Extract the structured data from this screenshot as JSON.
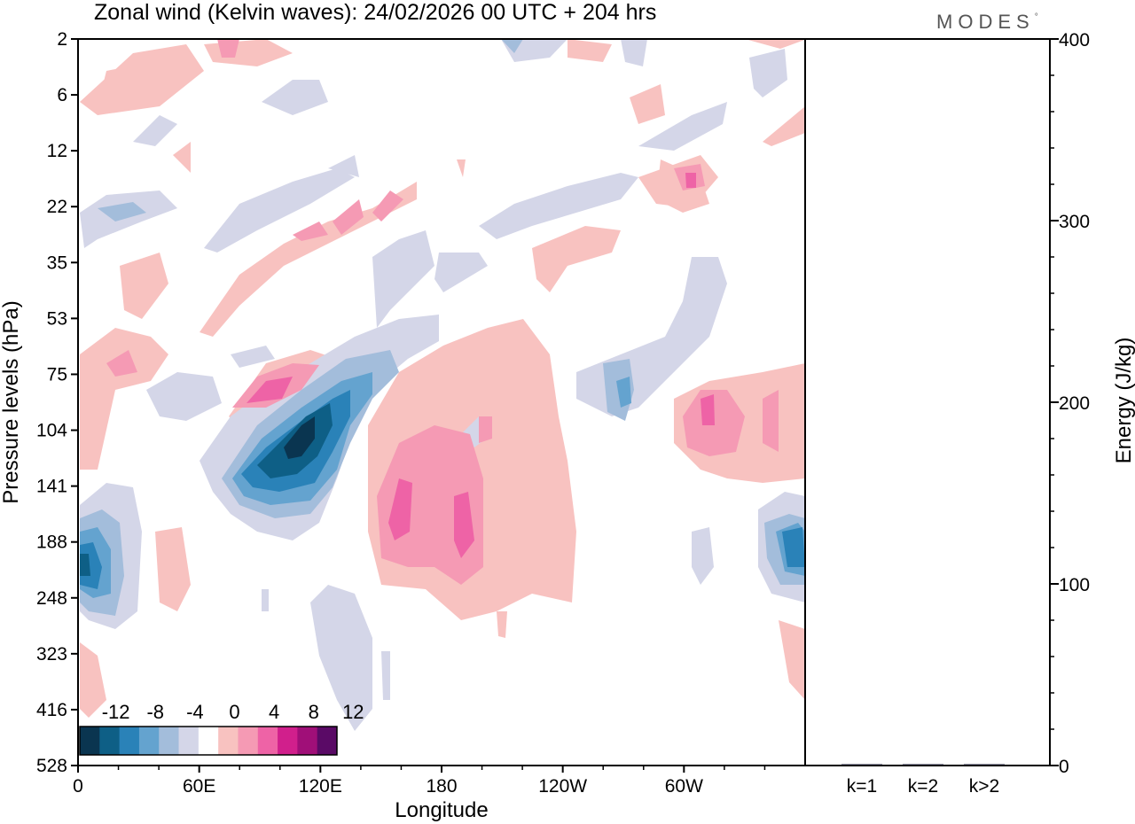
{
  "chart_data": {
    "type": "heatmap",
    "title": "Zonal wind (Kelvin waves):  24/02/2026  00 UTC  + 204 hrs",
    "brand": "MODES",
    "brand_mark": "°",
    "xlabel": "Longitude",
    "ylabel": "Pressure levels (hPa)",
    "y2label": "Energy (J/kg)",
    "x_ticks": [
      "0",
      "60E",
      "120E",
      "180",
      "120W",
      "60W"
    ],
    "x_range_deg": [
      0,
      360
    ],
    "y_ticks": [
      "2",
      "6",
      "12",
      "22",
      "35",
      "53",
      "75",
      "104",
      "141",
      "188",
      "248",
      "323",
      "416",
      "528"
    ],
    "energy_axis": {
      "ticks": [
        "0",
        "100",
        "200",
        "300",
        "400"
      ],
      "range": [
        0,
        400
      ]
    },
    "energy_bars": {
      "categories": [
        "k=1",
        "k=2",
        "k>2"
      ],
      "values": [
        0.5,
        0.4,
        0.7
      ]
    },
    "colorbar": {
      "labels": [
        "-12",
        "-8",
        "-4",
        "0",
        "4",
        "8",
        "12"
      ],
      "colors": [
        "#0a3550",
        "#0e5f86",
        "#2a82b8",
        "#64a3cf",
        "#a3bddb",
        "#d4d6e8",
        "#ffffff",
        "#f8c2c0",
        "#f59ab4",
        "#ee63a6",
        "#d11f8c",
        "#a00f78",
        "#5a0a66"
      ]
    },
    "field_features": [
      {
        "name": "negative-core-upper",
        "lon": 110,
        "level": 104,
        "value": -13
      },
      {
        "name": "negative-west",
        "lon": 8,
        "level": 200,
        "value": -9
      },
      {
        "name": "negative-east",
        "lon": 355,
        "level": 188,
        "value": -8
      },
      {
        "name": "positive-core-a",
        "lon": 155,
        "level": 160,
        "value": 8
      },
      {
        "name": "positive-core-b",
        "lon": 190,
        "level": 188,
        "value": 8
      },
      {
        "name": "positive-core-upper",
        "lon": 92,
        "level": 85,
        "value": 8
      },
      {
        "name": "positive-east",
        "lon": 312,
        "level": 110,
        "value": 9
      }
    ]
  }
}
